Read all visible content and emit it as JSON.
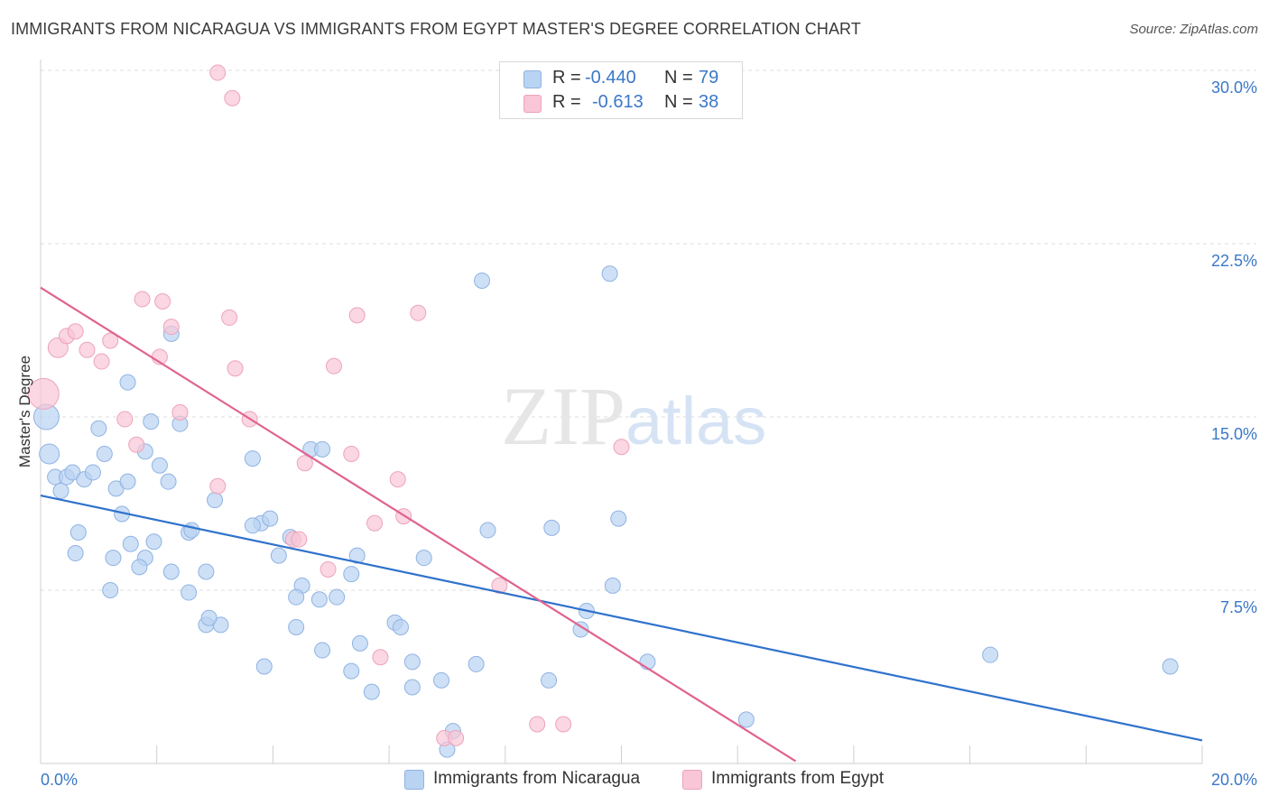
{
  "title": "IMMIGRANTS FROM NICARAGUA VS IMMIGRANTS FROM EGYPT MASTER'S DEGREE CORRELATION CHART",
  "source": "Source: ZipAtlas.com",
  "watermark": "ZIPatlas",
  "legend": {
    "row1": {
      "r_label": "R =",
      "r_value": "-0.440",
      "n_label": "N =",
      "n_value": "79"
    },
    "row2": {
      "r_label": "R =",
      "r_value": "-0.613",
      "n_label": "N =",
      "n_value": "38"
    }
  },
  "colors": {
    "blue_fill": "#b9d3f2",
    "blue_stroke": "#8fb3e3",
    "blue_line": "#2f72cc",
    "pink_fill": "#f8c6d6",
    "pink_stroke": "#eea3bb",
    "pink_line": "#e0638f",
    "tick_label": "#3a78c8",
    "grid": "#dcdcdc"
  },
  "chart_data": {
    "type": "scatter",
    "title": "IMMIGRANTS FROM NICARAGUA VS IMMIGRANTS FROM EGYPT MASTER'S DEGREE CORRELATION CHART",
    "xlabel": "",
    "ylabel": "Master's Degree",
    "xlim": [
      0,
      20
    ],
    "ylim": [
      0,
      30
    ],
    "x_tick_labels": [
      "0.0%",
      "20.0%"
    ],
    "y_ticks": [
      7.5,
      15.0,
      22.5,
      30.0
    ],
    "y_tick_labels": [
      "7.5%",
      "15.0%",
      "22.5%",
      "30.0%"
    ],
    "grid": "horizontal dashed",
    "legend_position": "bottom",
    "series": [
      {
        "name": "Immigrants from Nicaragua",
        "color": "#b9d3f2",
        "trend": {
          "x": [
            0,
            20
          ],
          "y": [
            11.6,
            1.0
          ]
        },
        "points": [
          [
            0.1,
            15.0
          ],
          [
            0.15,
            13.4
          ],
          [
            0.25,
            12.4
          ],
          [
            0.35,
            11.8
          ],
          [
            0.45,
            12.4
          ],
          [
            0.55,
            12.6
          ],
          [
            0.75,
            12.3
          ],
          [
            0.9,
            12.6
          ],
          [
            1.0,
            14.5
          ],
          [
            1.1,
            13.4
          ],
          [
            0.65,
            10.0
          ],
          [
            0.6,
            9.1
          ],
          [
            1.3,
            11.9
          ],
          [
            1.5,
            12.2
          ],
          [
            1.4,
            10.8
          ],
          [
            1.25,
            8.9
          ],
          [
            1.55,
            9.5
          ],
          [
            1.8,
            8.9
          ],
          [
            1.7,
            8.5
          ],
          [
            1.95,
            9.6
          ],
          [
            1.2,
            7.5
          ],
          [
            1.8,
            13.5
          ],
          [
            2.05,
            12.9
          ],
          [
            2.2,
            12.2
          ],
          [
            2.4,
            14.7
          ],
          [
            1.9,
            14.8
          ],
          [
            1.5,
            16.5
          ],
          [
            2.25,
            18.6
          ],
          [
            2.25,
            8.3
          ],
          [
            2.55,
            10.0
          ],
          [
            2.6,
            10.1
          ],
          [
            3.0,
            11.4
          ],
          [
            2.85,
            8.3
          ],
          [
            2.55,
            7.4
          ],
          [
            2.85,
            6.0
          ],
          [
            3.1,
            6.0
          ],
          [
            3.8,
            10.4
          ],
          [
            3.95,
            10.6
          ],
          [
            4.1,
            9.0
          ],
          [
            4.3,
            9.8
          ],
          [
            3.65,
            13.2
          ],
          [
            4.65,
            13.6
          ],
          [
            4.85,
            13.6
          ],
          [
            4.5,
            7.7
          ],
          [
            4.4,
            7.2
          ],
          [
            4.4,
            5.9
          ],
          [
            4.8,
            7.1
          ],
          [
            4.85,
            4.9
          ],
          [
            5.1,
            7.2
          ],
          [
            5.35,
            8.2
          ],
          [
            5.5,
            5.2
          ],
          [
            5.35,
            4.0
          ],
          [
            5.45,
            9.0
          ],
          [
            6.1,
            6.1
          ],
          [
            5.7,
            3.1
          ],
          [
            6.2,
            5.9
          ],
          [
            6.4,
            4.4
          ],
          [
            6.4,
            3.3
          ],
          [
            6.9,
            3.6
          ],
          [
            7.1,
            1.4
          ],
          [
            7.0,
            0.6
          ],
          [
            7.5,
            4.3
          ],
          [
            6.6,
            8.9
          ],
          [
            7.6,
            20.9
          ],
          [
            7.7,
            10.1
          ],
          [
            8.75,
            3.6
          ],
          [
            8.8,
            10.2
          ],
          [
            9.3,
            5.8
          ],
          [
            9.4,
            6.6
          ],
          [
            9.85,
            7.7
          ],
          [
            9.8,
            21.2
          ],
          [
            9.95,
            10.6
          ],
          [
            10.45,
            4.4
          ],
          [
            12.15,
            1.9
          ],
          [
            16.35,
            4.7
          ],
          [
            19.45,
            4.2
          ],
          [
            3.65,
            10.3
          ],
          [
            2.9,
            6.3
          ],
          [
            3.85,
            4.2
          ]
        ]
      },
      {
        "name": "Immigrants from Egypt",
        "color": "#f8c6d6",
        "trend": {
          "x": [
            0,
            13
          ],
          "y": [
            20.6,
            0.1
          ]
        },
        "points": [
          [
            0.05,
            16.0
          ],
          [
            0.3,
            18.0
          ],
          [
            0.45,
            18.5
          ],
          [
            0.6,
            18.7
          ],
          [
            0.8,
            17.9
          ],
          [
            1.05,
            17.4
          ],
          [
            1.2,
            18.3
          ],
          [
            1.45,
            14.9
          ],
          [
            1.65,
            13.8
          ],
          [
            1.75,
            20.1
          ],
          [
            2.1,
            20.0
          ],
          [
            2.05,
            17.6
          ],
          [
            2.25,
            18.9
          ],
          [
            2.4,
            15.2
          ],
          [
            3.25,
            19.3
          ],
          [
            3.35,
            17.1
          ],
          [
            3.6,
            14.9
          ],
          [
            3.05,
            29.9
          ],
          [
            3.3,
            28.8
          ],
          [
            3.05,
            12.0
          ],
          [
            4.55,
            13.0
          ],
          [
            4.35,
            9.7
          ],
          [
            4.45,
            9.7
          ],
          [
            5.05,
            17.2
          ],
          [
            5.35,
            13.4
          ],
          [
            5.45,
            19.4
          ],
          [
            6.5,
            19.5
          ],
          [
            6.15,
            12.3
          ],
          [
            5.75,
            10.4
          ],
          [
            6.25,
            10.7
          ],
          [
            5.85,
            4.6
          ],
          [
            4.95,
            8.4
          ],
          [
            7.9,
            7.7
          ],
          [
            8.55,
            1.7
          ],
          [
            9.0,
            1.7
          ],
          [
            6.95,
            1.1
          ],
          [
            7.15,
            1.1
          ],
          [
            10.0,
            13.7
          ]
        ]
      }
    ]
  },
  "bottom_legend": {
    "item1": "Immigrants from Nicaragua",
    "item2": "Immigrants from Egypt"
  }
}
